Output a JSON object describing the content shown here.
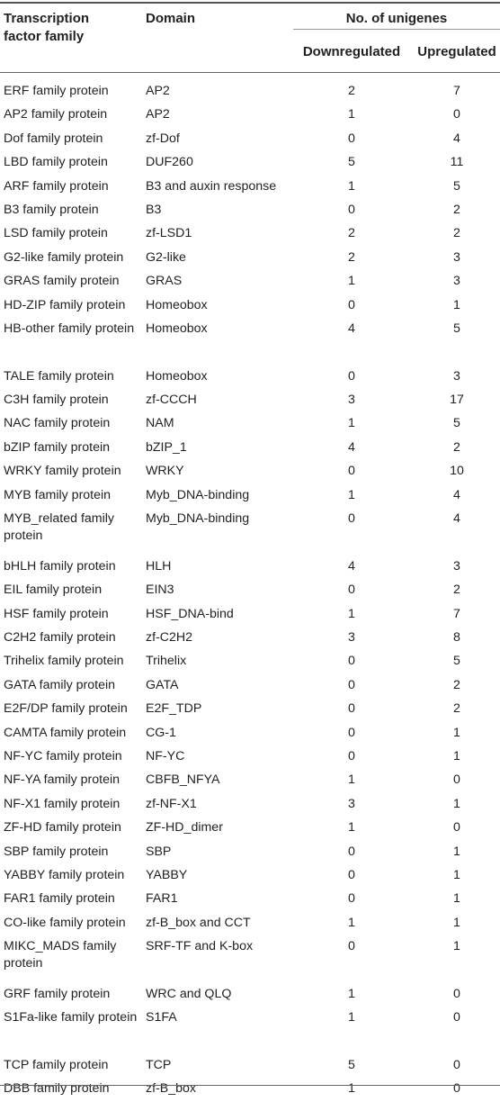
{
  "header": {
    "family_line1": "Transcription",
    "family_line2": "factor family",
    "domain": "Domain",
    "unigenes": "No. of unigenes",
    "down": "Downregulated",
    "up": "Upregulated"
  },
  "rows": [
    {
      "family": "ERF family protein",
      "domain": "AP2",
      "down": "2",
      "up": "7"
    },
    {
      "family": "AP2 family protein",
      "domain": "AP2",
      "down": "1",
      "up": "0"
    },
    {
      "family": "Dof family protein",
      "domain": "zf-Dof",
      "down": "0",
      "up": "4"
    },
    {
      "family": "LBD family protein",
      "domain": "DUF260",
      "down": "5",
      "up": "11"
    },
    {
      "family": "ARF family protein",
      "domain": "B3 and auxin response",
      "down": "1",
      "up": "5"
    },
    {
      "family": "B3 family protein",
      "domain": "B3",
      "down": "0",
      "up": "2"
    },
    {
      "family": "LSD family protein",
      "domain": "zf-LSD1",
      "down": "2",
      "up": "2"
    },
    {
      "family": "G2-like family protein",
      "domain": "G2-like",
      "down": "2",
      "up": "3"
    },
    {
      "family": "GRAS family protein",
      "domain": "GRAS",
      "down": "1",
      "up": "3"
    },
    {
      "family": "HD-ZIP family protein",
      "domain": "Homeobox",
      "down": "0",
      "up": "1"
    },
    {
      "family": "HB-other family protein",
      "domain": "Homeobox",
      "down": "4",
      "up": "5"
    },
    {
      "family": "TALE family protein",
      "domain": "Homeobox",
      "down": "0",
      "up": "3"
    },
    {
      "family": "C3H family protein",
      "domain": "zf-CCCH",
      "down": "3",
      "up": "17"
    },
    {
      "family": "NAC family protein",
      "domain": "NAM",
      "down": "1",
      "up": "5"
    },
    {
      "family": "bZIP family protein",
      "domain": "bZIP_1",
      "down": "4",
      "up": "2"
    },
    {
      "family": "WRKY family protein",
      "domain": "WRKY",
      "down": "0",
      "up": "10"
    },
    {
      "family": "MYB family protein",
      "domain": "Myb_DNA-binding",
      "down": "1",
      "up": "4"
    },
    {
      "family": "MYB_related family protein",
      "domain": "Myb_DNA-binding",
      "down": "0",
      "up": "4"
    },
    {
      "family": "bHLH family protein",
      "domain": "HLH",
      "down": "4",
      "up": "3"
    },
    {
      "family": "EIL family protein",
      "domain": "EIN3",
      "down": "0",
      "up": "2"
    },
    {
      "family": "HSF family protein",
      "domain": "HSF_DNA-bind",
      "down": "1",
      "up": "7"
    },
    {
      "family": "C2H2 family protein",
      "domain": "zf-C2H2",
      "down": "3",
      "up": "8"
    },
    {
      "family": "Trihelix family protein",
      "domain": "Trihelix",
      "down": "0",
      "up": "5"
    },
    {
      "family": "GATA family protein",
      "domain": "GATA",
      "down": "0",
      "up": "2"
    },
    {
      "family": "E2F/DP family protein",
      "domain": "E2F_TDP",
      "down": "0",
      "up": "2"
    },
    {
      "family": "CAMTA family protein",
      "domain": "CG-1",
      "down": "0",
      "up": "1"
    },
    {
      "family": "NF-YC family protein",
      "domain": "NF-YC",
      "down": "0",
      "up": "1"
    },
    {
      "family": "NF-YA family protein",
      "domain": "CBFB_NFYA",
      "down": "1",
      "up": "0"
    },
    {
      "family": "NF-X1 family protein",
      "domain": "zf-NF-X1",
      "down": "3",
      "up": "1"
    },
    {
      "family": "ZF-HD family protein",
      "domain": "ZF-HD_dimer",
      "down": "1",
      "up": "0"
    },
    {
      "family": "SBP family protein",
      "domain": "SBP",
      "down": "0",
      "up": "1"
    },
    {
      "family": "YABBY family protein",
      "domain": "YABBY",
      "down": "0",
      "up": "1"
    },
    {
      "family": "FAR1 family protein",
      "domain": "FAR1",
      "down": "0",
      "up": "1"
    },
    {
      "family": "CO-like family protein",
      "domain": "zf-B_box and CCT",
      "down": "1",
      "up": "1"
    },
    {
      "family": "MIKC_MADS family protein",
      "domain": "SRF-TF and K-box",
      "down": "0",
      "up": "1"
    },
    {
      "family": "GRF family protein",
      "domain": "WRC and QLQ",
      "down": "1",
      "up": "0"
    },
    {
      "family": "S1Fa-like family protein",
      "domain": "S1FA",
      "down": "1",
      "up": "0"
    },
    {
      "family": "TCP family protein",
      "domain": "TCP",
      "down": "5",
      "up": "0"
    },
    {
      "family": "DBB family protein",
      "domain": "zf-B_box",
      "down": "1",
      "up": "0"
    }
  ]
}
